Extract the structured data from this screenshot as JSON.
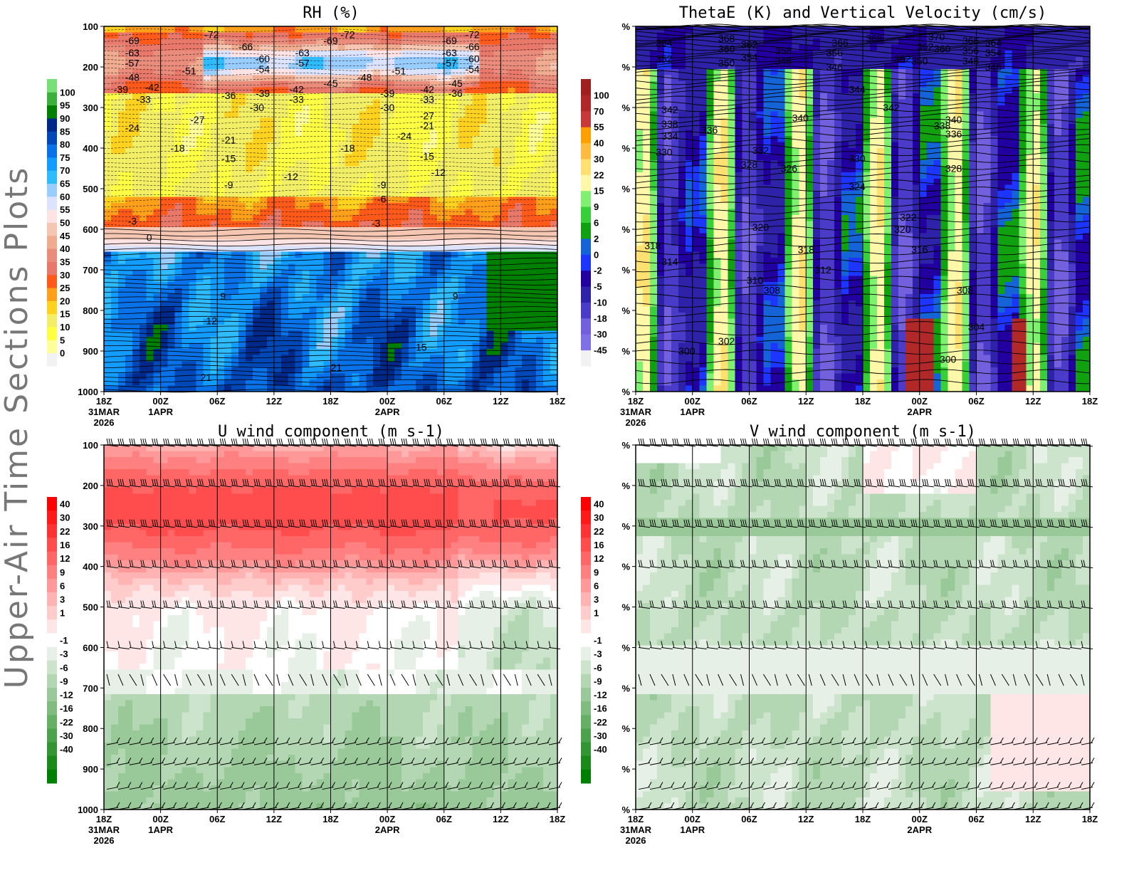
{
  "side_title": "Upper-Air Time Sections Plots",
  "time_axis": {
    "ticks": [
      "18Z",
      "00Z",
      "06Z",
      "12Z",
      "18Z",
      "00Z",
      "06Z",
      "12Z",
      "18Z"
    ],
    "sublabels": [
      [
        "31MAR",
        "2026"
      ],
      [
        "1APR"
      ],
      [],
      [],
      [],
      [
        "2APR"
      ],
      [],
      [],
      []
    ]
  },
  "chart_data": [
    {
      "type": "heatmap",
      "title": "RH (%)",
      "y_axis": {
        "ticks": [
          "100",
          "200",
          "300",
          "400",
          "500",
          "600",
          "700",
          "800",
          "900",
          "1000"
        ],
        "range_hPa": [
          100,
          1000
        ]
      },
      "colorbar": {
        "levels": [
          "0",
          "5",
          "10",
          "15",
          "20",
          "25",
          "30",
          "35",
          "40",
          "45",
          "50",
          "55",
          "60",
          "65",
          "70",
          "75",
          "80",
          "85",
          "90",
          "95",
          "100"
        ],
        "colors": [
          "#f2f2f2",
          "#ffff99",
          "#ffff44",
          "#f2ef66",
          "#ffd21f",
          "#ff9f1a",
          "#ff5a1a",
          "#e8786a",
          "#ea8c7c",
          "#efac90",
          "#f5c6b2",
          "#fde3e3",
          "#dce3ff",
          "#99ccff",
          "#2ebcff",
          "#139cff",
          "#0a72e8",
          "#0048b8",
          "#002888",
          "#008000",
          "#3cb03c",
          "#78e078"
        ]
      },
      "contour_labels": [
        {
          "t": 0.5,
          "p": 135,
          "v": "-69"
        },
        {
          "t": 0.5,
          "p": 165,
          "v": "-63"
        },
        {
          "t": 0.5,
          "p": 190,
          "v": "-57"
        },
        {
          "t": 0.5,
          "p": 225,
          "v": "-48"
        },
        {
          "t": 0.3,
          "p": 255,
          "v": "-39"
        },
        {
          "t": 0.85,
          "p": 250,
          "v": "-42"
        },
        {
          "t": 0.7,
          "p": 280,
          "v": "-33"
        },
        {
          "t": 1.5,
          "p": 210,
          "v": "-51"
        },
        {
          "t": 1.9,
          "p": 120,
          "v": "-72"
        },
        {
          "t": 1.65,
          "p": 330,
          "v": "-27"
        },
        {
          "t": 0.5,
          "p": 350,
          "v": "-24"
        },
        {
          "t": 1.3,
          "p": 400,
          "v": "-18"
        },
        {
          "t": 2.2,
          "p": 380,
          "v": "-21"
        },
        {
          "t": 2.2,
          "p": 425,
          "v": "-15"
        },
        {
          "t": 2.2,
          "p": 490,
          "v": "-9"
        },
        {
          "t": 3.3,
          "p": 470,
          "v": "-12"
        },
        {
          "t": 0.5,
          "p": 580,
          "v": "-3"
        },
        {
          "t": 0.8,
          "p": 620,
          "v": "0"
        },
        {
          "t": 2.5,
          "p": 150,
          "v": "-66"
        },
        {
          "t": 2.8,
          "p": 180,
          "v": "-60"
        },
        {
          "t": 2.8,
          "p": 205,
          "v": "-54"
        },
        {
          "t": 2.8,
          "p": 265,
          "v": "-39"
        },
        {
          "t": 2.7,
          "p": 300,
          "v": "-30"
        },
        {
          "t": 2.2,
          "p": 270,
          "v": "-36"
        },
        {
          "t": 3.4,
          "p": 280,
          "v": "-33"
        },
        {
          "t": 3.4,
          "p": 255,
          "v": "-42"
        },
        {
          "t": 3.5,
          "p": 165,
          "v": "-63"
        },
        {
          "t": 3.5,
          "p": 190,
          "v": "-57"
        },
        {
          "t": 4.0,
          "p": 135,
          "v": "-69"
        },
        {
          "t": 4.0,
          "p": 240,
          "v": "-45"
        },
        {
          "t": 4.3,
          "p": 120,
          "v": "-72"
        },
        {
          "t": 4.6,
          "p": 225,
          "v": "-48"
        },
        {
          "t": 4.3,
          "p": 400,
          "v": "-18"
        },
        {
          "t": 5.2,
          "p": 210,
          "v": "-51"
        },
        {
          "t": 5.0,
          "p": 265,
          "v": "-39"
        },
        {
          "t": 5.0,
          "p": 300,
          "v": "-30"
        },
        {
          "t": 5.3,
          "p": 370,
          "v": "-24"
        },
        {
          "t": 4.8,
          "p": 585,
          "v": "-3"
        },
        {
          "t": 4.9,
          "p": 490,
          "v": "-9"
        },
        {
          "t": 4.9,
          "p": 525,
          "v": "-6"
        },
        {
          "t": 5.7,
          "p": 255,
          "v": "-42"
        },
        {
          "t": 5.7,
          "p": 280,
          "v": "-33"
        },
        {
          "t": 5.7,
          "p": 320,
          "v": "-27"
        },
        {
          "t": 5.7,
          "p": 345,
          "v": "-21"
        },
        {
          "t": 5.7,
          "p": 420,
          "v": "-15"
        },
        {
          "t": 5.9,
          "p": 460,
          "v": "-12"
        },
        {
          "t": 6.1,
          "p": 135,
          "v": "-69"
        },
        {
          "t": 6.1,
          "p": 165,
          "v": "-63"
        },
        {
          "t": 6.1,
          "p": 190,
          "v": "-57"
        },
        {
          "t": 6.2,
          "p": 240,
          "v": "-45"
        },
        {
          "t": 6.2,
          "p": 265,
          "v": "-36"
        },
        {
          "t": 6.5,
          "p": 120,
          "v": "-72"
        },
        {
          "t": 6.5,
          "p": 150,
          "v": "-66"
        },
        {
          "t": 6.5,
          "p": 180,
          "v": "-60"
        },
        {
          "t": 6.5,
          "p": 205,
          "v": "-54"
        },
        {
          "t": 2.1,
          "p": 765,
          "v": "9"
        },
        {
          "t": 1.9,
          "p": 825,
          "v": "12"
        },
        {
          "t": 6.2,
          "p": 765,
          "v": "9"
        },
        {
          "t": 5.6,
          "p": 890,
          "v": "15"
        },
        {
          "t": 1.8,
          "p": 965,
          "v": "21"
        },
        {
          "t": 4.1,
          "p": 940,
          "v": "21"
        }
      ]
    },
    {
      "type": "heatmap",
      "title": "ThetaE (K) and Vertical Velocity (cm/s)",
      "y_axis": {
        "ticks": [
          "%",
          "%",
          "%",
          "%",
          "%",
          "%",
          "%",
          "%",
          "%",
          "%"
        ]
      },
      "colorbar": {
        "levels": [
          "-45",
          "-30",
          "-18",
          "-10",
          "-5",
          "-2",
          "0",
          "2",
          "6",
          "9",
          "15",
          "22",
          "30",
          "40",
          "55",
          "70",
          "100"
        ],
        "colors": [
          "#f2f2f2",
          "#8070e8",
          "#7260dc",
          "#4a3cc8",
          "#2d22a8",
          "#2200a0",
          "#1c36ff",
          "#1464d8",
          "#10a010",
          "#38d038",
          "#80f070",
          "#fff8a8",
          "#ffe070",
          "#ffbb40",
          "#ffa000",
          "#c83a3a",
          "#b02828",
          "#a02020"
        ]
      },
      "contour_labels": [
        {
          "t": 0.5,
          "p": 140,
          "v": "364"
        },
        {
          "t": 0.5,
          "p": 180,
          "v": "352"
        },
        {
          "t": 1.6,
          "p": 130,
          "v": "368"
        },
        {
          "t": 1.6,
          "p": 155,
          "v": "360"
        },
        {
          "t": 1.6,
          "p": 190,
          "v": "350"
        },
        {
          "t": 2.0,
          "p": 145,
          "v": "362"
        },
        {
          "t": 2.0,
          "p": 175,
          "v": "354"
        },
        {
          "t": 2.6,
          "p": 160,
          "v": "358"
        },
        {
          "t": 2.6,
          "p": 185,
          "v": "348"
        },
        {
          "t": 3.6,
          "p": 140,
          "v": "366"
        },
        {
          "t": 3.5,
          "p": 165,
          "v": "356"
        },
        {
          "t": 3.5,
          "p": 200,
          "v": "346"
        },
        {
          "t": 4.2,
          "p": 130,
          "v": "368"
        },
        {
          "t": 4.7,
          "p": 180,
          "v": "352"
        },
        {
          "t": 5.3,
          "p": 125,
          "v": "370"
        },
        {
          "t": 5.1,
          "p": 150,
          "v": "362"
        },
        {
          "t": 5.4,
          "p": 155,
          "v": "360"
        },
        {
          "t": 5.0,
          "p": 185,
          "v": "350"
        },
        {
          "t": 5.9,
          "p": 135,
          "v": "366"
        },
        {
          "t": 5.9,
          "p": 160,
          "v": "356"
        },
        {
          "t": 5.9,
          "p": 185,
          "v": "348"
        },
        {
          "t": 6.3,
          "p": 140,
          "v": "364"
        },
        {
          "t": 6.3,
          "p": 165,
          "v": "354"
        },
        {
          "t": 6.3,
          "p": 200,
          "v": "346"
        },
        {
          "t": 3.9,
          "p": 255,
          "v": "344"
        },
        {
          "t": 4.5,
          "p": 300,
          "v": "342"
        },
        {
          "t": 0.6,
          "p": 305,
          "v": "342"
        },
        {
          "t": 0.6,
          "p": 340,
          "v": "338"
        },
        {
          "t": 0.6,
          "p": 370,
          "v": "334"
        },
        {
          "t": 0.5,
          "p": 410,
          "v": "330"
        },
        {
          "t": 1.3,
          "p": 355,
          "v": "336"
        },
        {
          "t": 2.2,
          "p": 405,
          "v": "332"
        },
        {
          "t": 2.0,
          "p": 440,
          "v": "328"
        },
        {
          "t": 2.7,
          "p": 450,
          "v": "326"
        },
        {
          "t": 2.9,
          "p": 325,
          "v": "340"
        },
        {
          "t": 3.9,
          "p": 425,
          "v": "330"
        },
        {
          "t": 3.9,
          "p": 495,
          "v": "324"
        },
        {
          "t": 4.8,
          "p": 570,
          "v": "322"
        },
        {
          "t": 4.7,
          "p": 600,
          "v": "320"
        },
        {
          "t": 2.2,
          "p": 595,
          "v": "320"
        },
        {
          "t": 3.0,
          "p": 650,
          "v": "318"
        },
        {
          "t": 3.3,
          "p": 700,
          "v": "312"
        },
        {
          "t": 5.0,
          "p": 650,
          "v": "316"
        },
        {
          "t": 5.4,
          "p": 345,
          "v": "338"
        },
        {
          "t": 5.6,
          "p": 365,
          "v": "336"
        },
        {
          "t": 5.6,
          "p": 330,
          "v": "340"
        },
        {
          "t": 5.6,
          "p": 450,
          "v": "328"
        },
        {
          "t": 0.3,
          "p": 640,
          "v": "318"
        },
        {
          "t": 0.6,
          "p": 680,
          "v": "314"
        },
        {
          "t": 2.1,
          "p": 725,
          "v": "310"
        },
        {
          "t": 2.4,
          "p": 750,
          "v": "308"
        },
        {
          "t": 5.8,
          "p": 750,
          "v": "308"
        },
        {
          "t": 6.0,
          "p": 840,
          "v": "304"
        },
        {
          "t": 1.6,
          "p": 875,
          "v": "302"
        },
        {
          "t": 0.9,
          "p": 900,
          "v": "300"
        },
        {
          "t": 5.5,
          "p": 920,
          "v": "300"
        }
      ]
    },
    {
      "type": "heatmap",
      "title": "U wind component (m s-1)",
      "y_axis": {
        "ticks": [
          "100",
          "200",
          "300",
          "400",
          "500",
          "600",
          "700",
          "800",
          "900",
          "1000"
        ],
        "range_hPa": [
          100,
          1000
        ]
      },
      "colorbar": {
        "levels": [
          "40",
          "30",
          "22",
          "16",
          "12",
          "9",
          "6",
          "3",
          "1",
          "-1",
          "-3",
          "-6",
          "-9",
          "-12",
          "-16",
          "-22",
          "-30",
          "-40"
        ],
        "colors": [
          "#ff0000",
          "#ff1a1a",
          "#ff3333",
          "#ff4d4d",
          "#ff6666",
          "#ff8080",
          "#ff9999",
          "#ffb3b3",
          "#ffcccc",
          "#ffe6e6",
          "#ffffff",
          "#e6f0e6",
          "#cce3cc",
          "#b3d6b3",
          "#99c999",
          "#80bc80",
          "#66b066",
          "#4da34d",
          "#339633",
          "#1a8a1a",
          "#008000"
        ]
      }
    },
    {
      "type": "heatmap",
      "title": "V wind component (m s-1)",
      "y_axis": {
        "ticks": [
          "%",
          "%",
          "%",
          "%",
          "%",
          "%",
          "%",
          "%",
          "%",
          "%"
        ]
      },
      "colorbar": {
        "levels": [
          "40",
          "30",
          "22",
          "16",
          "12",
          "9",
          "6",
          "3",
          "1",
          "-1",
          "-3",
          "-6",
          "-9",
          "-12",
          "-16",
          "-22",
          "-30",
          "-40"
        ],
        "colors": [
          "#ff0000",
          "#ff1a1a",
          "#ff3333",
          "#ff4d4d",
          "#ff6666",
          "#ff8080",
          "#ff9999",
          "#ffb3b3",
          "#ffcccc",
          "#ffe6e6",
          "#ffffff",
          "#e6f0e6",
          "#cce3cc",
          "#b3d6b3",
          "#99c999",
          "#80bc80",
          "#66b066",
          "#4da34d",
          "#339633",
          "#1a8a1a",
          "#008000"
        ]
      }
    }
  ]
}
